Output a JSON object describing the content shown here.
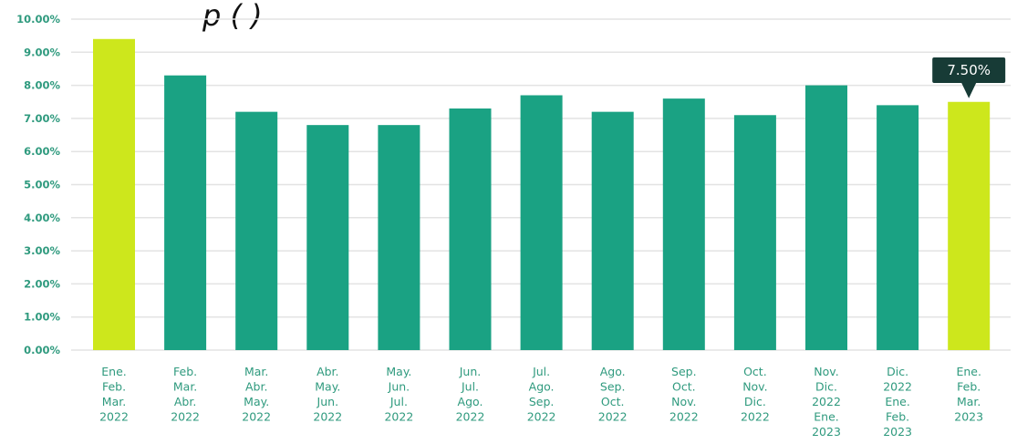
{
  "chart_data": {
    "type": "bar",
    "categories": [
      [
        "Ene.",
        "Feb.",
        "Mar.",
        "2022"
      ],
      [
        "Feb.",
        "Mar.",
        "Abr.",
        "2022"
      ],
      [
        "Mar.",
        "Abr.",
        "May.",
        "2022"
      ],
      [
        "Abr.",
        "May.",
        "Jun.",
        "2022"
      ],
      [
        "May.",
        "Jun.",
        "Jul.",
        "2022"
      ],
      [
        "Jun.",
        "Jul.",
        "Ago.",
        "2022"
      ],
      [
        "Jul.",
        "Ago.",
        "Sep.",
        "2022"
      ],
      [
        "Ago.",
        "Sep.",
        "Oct.",
        "2022"
      ],
      [
        "Sep.",
        "Oct.",
        "Nov.",
        "2022"
      ],
      [
        "Oct.",
        "Nov.",
        "Dic.",
        "2022"
      ],
      [
        "Nov.",
        "Dic.",
        "2022",
        "Ene.",
        "2023"
      ],
      [
        "Dic.",
        "2022",
        "Ene.",
        "Feb.",
        "2023"
      ],
      [
        "Ene.",
        "Feb.",
        "Mar.",
        "2023"
      ]
    ],
    "values": [
      9.4,
      8.3,
      7.2,
      6.8,
      6.8,
      7.3,
      7.7,
      7.2,
      7.6,
      7.1,
      8.0,
      7.4,
      7.5
    ],
    "highlight_indices": [
      0,
      12
    ],
    "ylim": [
      0,
      10
    ],
    "yticks": [
      "0.00%",
      "1.00%",
      "2.00%",
      "3.00%",
      "4.00%",
      "5.00%",
      "6.00%",
      "7.00%",
      "8.00%",
      "9.00%",
      "10.00%"
    ],
    "grid": true,
    "title_fragment": "p   (                              )",
    "tooltip": {
      "label": "7.50%",
      "index": 12
    },
    "colors": {
      "bar": "#1aa283",
      "highlight": "#cde71c",
      "tick_text": "#2f9a7e",
      "tooltip_bg": "#173b36",
      "tooltip_text": "#ffffff",
      "grid": "#e3e3e3"
    }
  }
}
